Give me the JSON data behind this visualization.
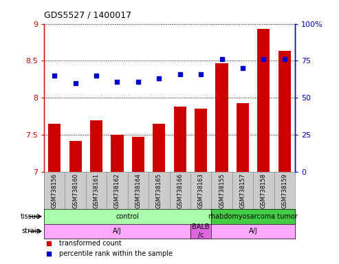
{
  "title": "GDS5527 / 1400017",
  "samples": [
    "GSM738156",
    "GSM738160",
    "GSM738161",
    "GSM738162",
    "GSM738164",
    "GSM738165",
    "GSM738166",
    "GSM738163",
    "GSM738155",
    "GSM738157",
    "GSM738158",
    "GSM738159"
  ],
  "transformed_count": [
    7.65,
    7.42,
    7.7,
    7.5,
    7.47,
    7.65,
    7.88,
    7.85,
    8.47,
    7.93,
    8.93,
    8.63
  ],
  "percentile_rank": [
    65,
    60,
    65,
    61,
    61,
    63,
    66,
    66,
    76,
    70,
    76,
    76
  ],
  "ylim_left": [
    7.0,
    9.0
  ],
  "ylim_right": [
    0,
    100
  ],
  "yticks_left": [
    7.0,
    7.5,
    8.0,
    8.5,
    9.0
  ],
  "yticks_right": [
    0,
    25,
    50,
    75,
    100
  ],
  "bar_color": "#cc0000",
  "dot_color": "#0000cc",
  "tissue_ranges": [
    [
      0,
      8,
      "control",
      "#aaffaa"
    ],
    [
      8,
      12,
      "rhabdomyosarcoma tumor",
      "#44cc44"
    ]
  ],
  "strain_ranges": [
    [
      0,
      7,
      "A/J",
      "#ffaaff"
    ],
    [
      7,
      8,
      "BALB\n/c",
      "#dd66dd"
    ],
    [
      8,
      12,
      "A/J",
      "#ffaaff"
    ]
  ],
  "tissue_label": "tissue",
  "strain_label": "strain",
  "legend_bar_label": "transformed count",
  "legend_dot_label": "percentile rank within the sample",
  "axis_color_left": "#cc0000",
  "axis_color_right": "#0000cc",
  "tick_bg_color": "#cccccc",
  "tick_border_color": "#888888"
}
